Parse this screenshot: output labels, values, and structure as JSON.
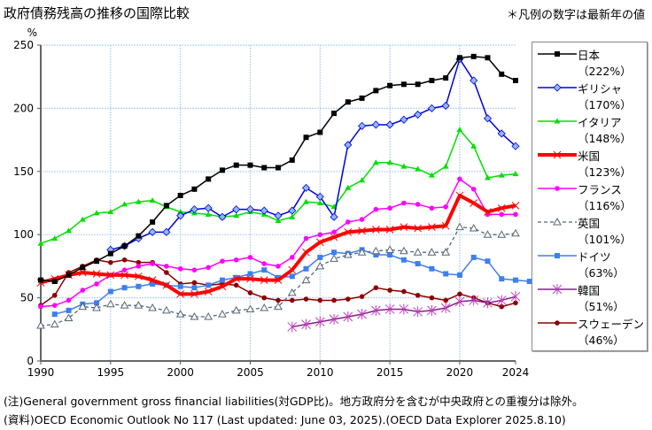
{
  "title": "政府債務残高の推移の国際比較",
  "legend_note": "＊凡例の数字は最新年の値",
  "footnotes": [
    "(注)General government gross financial liabilities(対GDP比)。地方政府分を含むが中央政府との重複分は除外。",
    "(資料)OECD Economic Outlook No 117 (Last updated: June 03, 2025).(OECD Data Explorer 2025.8.10)"
  ],
  "chart_data": {
    "type": "line",
    "title": "政府債務残高の推移の国際比較",
    "xlabel": "",
    "ylabel": "%",
    "xlim": [
      1990,
      2024
    ],
    "ylim": [
      0,
      250
    ],
    "yticks": [
      0,
      50,
      100,
      150,
      200,
      250
    ],
    "xticks": [
      1990,
      1995,
      2000,
      2005,
      2010,
      2015,
      2020,
      2024
    ],
    "grid": true,
    "legend_position": "right",
    "series": [
      {
        "name": "日本",
        "latest": "（222%）",
        "color": "#000000",
        "marker": "square",
        "width": 1.5,
        "dash": "",
        "start": 1990,
        "values": [
          64,
          63,
          68,
          74,
          79,
          85,
          91,
          99,
          110,
          123,
          131,
          136,
          144,
          151,
          155,
          155,
          153,
          153,
          159,
          177,
          181,
          196,
          205,
          208,
          214,
          218,
          219,
          219,
          222,
          224,
          240,
          241,
          240,
          227,
          222
        ]
      },
      {
        "name": "ギリシャ",
        "latest": "（170%）",
        "color": "#0000dd",
        "marker": "diamond",
        "width": 1.5,
        "dash": "",
        "start": 1995,
        "values": [
          88,
          91,
          97,
          102,
          102,
          115,
          120,
          121,
          114,
          120,
          120,
          119,
          115,
          119,
          137,
          130,
          114,
          171,
          186,
          187,
          187,
          191,
          195,
          200,
          202,
          239,
          222,
          192,
          180,
          170
        ]
      },
      {
        "name": "イタリア",
        "latest": "（148%）",
        "color": "#00e000",
        "marker": "triangle",
        "width": 1.5,
        "dash": "",
        "start": 1990,
        "values": [
          93,
          97,
          103,
          112,
          117,
          118,
          124,
          126,
          127,
          122,
          118,
          117,
          116,
          114,
          115,
          118,
          116,
          111,
          114,
          126,
          125,
          122,
          137,
          143,
          157,
          157,
          154,
          152,
          147,
          154,
          183,
          170,
          145,
          147,
          148
        ]
      },
      {
        "name": "米国",
        "latest": "（123%）",
        "color": "#ff0000",
        "marker": "x",
        "width": 4,
        "dash": "",
        "start": 1990,
        "values": [
          62,
          65,
          68,
          70,
          69,
          68,
          68,
          67,
          64,
          60,
          53,
          53,
          55,
          59,
          65,
          65,
          64,
          64,
          72,
          86,
          94,
          98,
          102,
          103,
          104,
          104,
          106,
          105,
          106,
          107,
          131,
          125,
          118,
          121,
          123
        ]
      },
      {
        "name": "フランス",
        "latest": "（116%）",
        "color": "#ff00ff",
        "marker": "dot",
        "width": 1.5,
        "dash": "",
        "start": 1990,
        "values": [
          43,
          44,
          48,
          56,
          61,
          68,
          72,
          75,
          77,
          75,
          73,
          72,
          74,
          79,
          80,
          82,
          77,
          75,
          82,
          97,
          100,
          102,
          110,
          112,
          120,
          121,
          125,
          124,
          121,
          122,
          144,
          136,
          116,
          116,
          116
        ]
      },
      {
        "name": "英国",
        "latest": "（101%）",
        "color": "#556677",
        "marker": "open-triangle",
        "width": 1.3,
        "dash": "4,3",
        "start": 1990,
        "values": [
          28,
          29,
          34,
          43,
          42,
          45,
          44,
          44,
          42,
          40,
          37,
          35,
          35,
          37,
          40,
          41,
          42,
          43,
          54,
          64,
          75,
          81,
          84,
          86,
          87,
          88,
          87,
          86,
          86,
          86,
          106,
          105,
          100,
          100,
          101
        ]
      },
      {
        "name": "ドイツ",
        "latest": "（63%）",
        "color": "#3d7ff0",
        "marker": "square",
        "width": 1.5,
        "dash": "",
        "start": 1991,
        "values": [
          37,
          40,
          45,
          46,
          55,
          58,
          59,
          61,
          60,
          59,
          58,
          60,
          64,
          66,
          69,
          72,
          66,
          67,
          73,
          82,
          86,
          85,
          88,
          84,
          84,
          80,
          77,
          73,
          69,
          68,
          82,
          79,
          65,
          64,
          63
        ]
      },
      {
        "name": "韓国",
        "latest": "（51%）",
        "color": "#8b1a8b",
        "marker": "star",
        "width": 1.5,
        "dash": "",
        "start": 2008,
        "values": [
          27,
          29,
          31,
          33,
          35,
          37,
          40,
          41,
          41,
          39,
          40,
          42,
          47,
          48,
          46,
          48,
          51
        ]
      },
      {
        "name": "スウェーデン",
        "latest": "（46%）",
        "color": "#8b0000",
        "marker": "dot",
        "width": 1.5,
        "dash": "",
        "start": 1990,
        "values": [
          44,
          52,
          70,
          75,
          80,
          78,
          80,
          78,
          78,
          70,
          61,
          62,
          60,
          61,
          60,
          54,
          50,
          48,
          48,
          49,
          48,
          48,
          49,
          51,
          58,
          56,
          55,
          52,
          50,
          48,
          53,
          50,
          46,
          43,
          46
        ]
      }
    ]
  }
}
